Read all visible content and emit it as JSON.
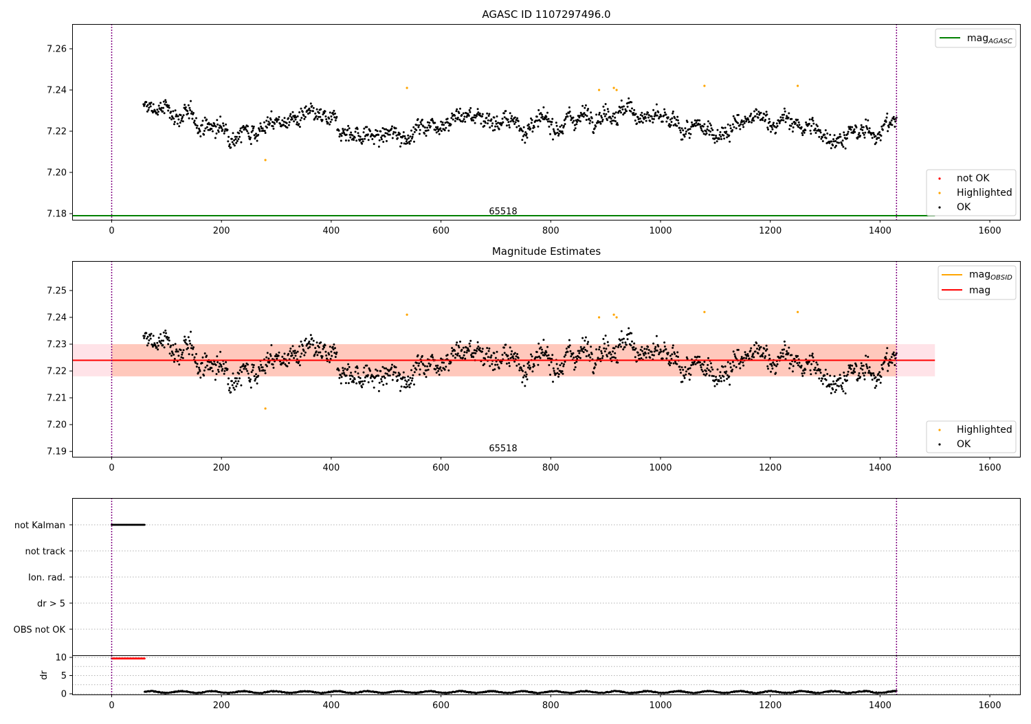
{
  "colors": {
    "ok": "#000000",
    "highlighted": "#ffa500",
    "not_ok": "#ff0000",
    "mag_agasc": "#008000",
    "mag": "#ff0000",
    "mag_obsid": "#ffa500",
    "band_outer": "#ffc0cb",
    "band_inner": "#ffa07a",
    "vline": "#800080",
    "grid": "#b0b0b0"
  },
  "chart_data": [
    {
      "type": "scatter",
      "title": "AGASC ID 1107297496.0",
      "xlim": [
        -72,
        1655
      ],
      "ylim": [
        7.177,
        7.272
      ],
      "xticks": [
        "0",
        "200",
        "400",
        "600",
        "800",
        "1000",
        "1200",
        "1400",
        "1600"
      ],
      "yticks": [
        "7.18",
        "7.20",
        "7.22",
        "7.24",
        "7.26"
      ],
      "annotation": "65518",
      "vlines_x": [
        0,
        1430
      ],
      "mag_agasc": 7.179,
      "points_x_range": [
        58,
        1430
      ],
      "ok_center": 7.224,
      "highlighted_points": [
        [
          280,
          7.206
        ],
        [
          538,
          7.241
        ],
        [
          888,
          7.24
        ],
        [
          915,
          7.241
        ],
        [
          920,
          7.24
        ],
        [
          1080,
          7.242
        ],
        [
          1250,
          7.242
        ]
      ],
      "line_legend": {
        "label": "mag",
        "subscript": "AGASC"
      },
      "marker_legend": [
        "not OK",
        "Highlighted",
        "OK"
      ],
      "legend_positions": [
        "upper right",
        "lower right"
      ]
    },
    {
      "type": "scatter",
      "title": "Magnitude Estimates",
      "xlim": [
        -72,
        1655
      ],
      "ylim": [
        7.188,
        7.261
      ],
      "xticks": [
        "0",
        "200",
        "400",
        "600",
        "800",
        "1000",
        "1200",
        "1400",
        "1600"
      ],
      "yticks": [
        "7.19",
        "7.20",
        "7.21",
        "7.22",
        "7.23",
        "7.24",
        "7.25"
      ],
      "annotation": "65518",
      "vlines_x": [
        0,
        1430
      ],
      "mag": 7.224,
      "mag_band": [
        7.218,
        7.23
      ],
      "band_x_range": [
        -72,
        1500
      ],
      "highlighted_points": [
        [
          280,
          7.206
        ],
        [
          538,
          7.241
        ],
        [
          888,
          7.24
        ],
        [
          915,
          7.241
        ],
        [
          920,
          7.24
        ],
        [
          1080,
          7.242
        ],
        [
          1250,
          7.242
        ]
      ],
      "line_legend": [
        {
          "label": "mag",
          "subscript": "OBSID"
        },
        {
          "label": "mag",
          "subscript": ""
        }
      ],
      "marker_legend": [
        "Highlighted",
        "OK"
      ],
      "legend_positions": [
        "upper right",
        "lower right"
      ]
    },
    {
      "type": "scatter",
      "title": "",
      "xlim": [
        -72,
        1655
      ],
      "categories": [
        "not Kalman",
        "not track",
        "Ion. rad.",
        "dr > 5",
        "OBS not OK"
      ],
      "flag_points": {
        "category": "not Kalman",
        "x_range": [
          0,
          60
        ]
      },
      "vlines_x": [
        0,
        1430
      ]
    },
    {
      "type": "scatter",
      "title": "",
      "xlim": [
        -72,
        1655
      ],
      "ylabel": "dr",
      "ylim": [
        -0.3,
        10.5
      ],
      "yticks": [
        "0",
        "5",
        "10"
      ],
      "xticks": [
        "0",
        "200",
        "400",
        "600",
        "800",
        "1000",
        "1200",
        "1400",
        "1600"
      ],
      "red_points": {
        "x_range": [
          0,
          60
        ],
        "y": 9.7
      },
      "ok_points": {
        "x_range": [
          60,
          1430
        ],
        "y_range": [
          0,
          1
        ]
      },
      "vlines_x": [
        0,
        1430
      ]
    }
  ]
}
